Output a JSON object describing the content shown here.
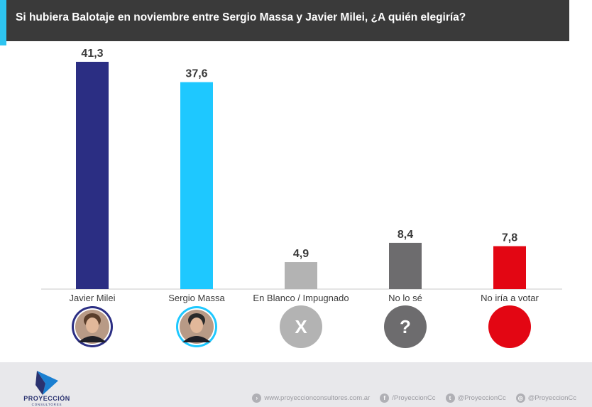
{
  "title": "Si hubiera Balotaje en noviembre entre Sergio Massa y Javier Milei, ¿A quién elegiría?",
  "chart_data": {
    "type": "bar",
    "title": "Si hubiera Balotaje en noviembre entre Sergio Massa y Javier Milei, ¿A quién elegiría?",
    "categories": [
      "Javier Milei",
      "Sergio Massa",
      "En Blanco / Impugnado",
      "No lo sé",
      "No iría a votar"
    ],
    "values": [
      41.3,
      37.6,
      4.9,
      8.4,
      7.8
    ],
    "value_labels": [
      "41,3",
      "37,6",
      "4,9",
      "8,4",
      "7,8"
    ],
    "colors": [
      "#2b2e83",
      "#1ec8ff",
      "#b3b3b3",
      "#6d6c6e",
      "#e30613"
    ],
    "ylim": [
      0,
      41.3
    ],
    "grid": false,
    "legend": "none",
    "icons": [
      {
        "type": "photo",
        "name": "javier-milei-photo-icon",
        "ring": "#2b2e83"
      },
      {
        "type": "photo",
        "name": "sergio-massa-photo-icon",
        "ring": "#1ec8ff"
      },
      {
        "type": "glyph",
        "name": "x-icon",
        "glyph": "X",
        "bg": "#b3b3b3"
      },
      {
        "type": "glyph",
        "name": "question-icon",
        "glyph": "?",
        "bg": "#6d6c6e"
      },
      {
        "type": "glyph",
        "name": "red-circle-icon",
        "glyph": "",
        "bg": "#e30613"
      }
    ]
  },
  "footer": {
    "brand": "PROYECCIÓN",
    "brand_sub": "CONSULTORES",
    "website": "www.proyeccionconsultores.com.ar",
    "facebook": "/ProyeccionCc",
    "twitter": "@ProyeccionCc",
    "instagram": "@ProyeccionCc"
  }
}
